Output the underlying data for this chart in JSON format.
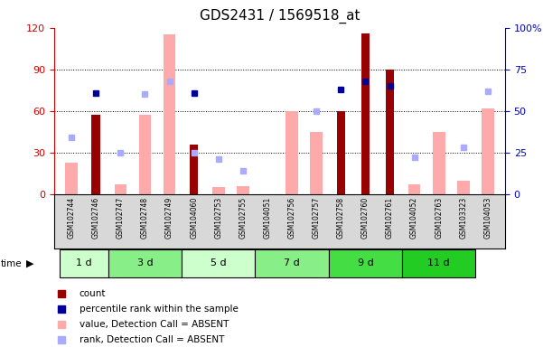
{
  "title": "GDS2431 / 1569518_at",
  "samples": [
    "GSM102744",
    "GSM102746",
    "GSM102747",
    "GSM102748",
    "GSM102749",
    "GSM104060",
    "GSM102753",
    "GSM102755",
    "GSM104051",
    "GSM102756",
    "GSM102757",
    "GSM102758",
    "GSM102760",
    "GSM102761",
    "GSM104052",
    "GSM102763",
    "GSM103323",
    "GSM104053"
  ],
  "time_groups": [
    {
      "label": "1 d",
      "start": 0,
      "end": 2,
      "color": "#ccffcc"
    },
    {
      "label": "3 d",
      "start": 2,
      "end": 5,
      "color": "#88ee88"
    },
    {
      "label": "5 d",
      "start": 5,
      "end": 8,
      "color": "#ccffcc"
    },
    {
      "label": "7 d",
      "start": 8,
      "end": 11,
      "color": "#88ee88"
    },
    {
      "label": "9 d",
      "start": 11,
      "end": 14,
      "color": "#44dd44"
    },
    {
      "label": "11 d",
      "start": 14,
      "end": 17,
      "color": "#22cc22"
    }
  ],
  "count": [
    0,
    57,
    0,
    0,
    0,
    36,
    0,
    0,
    0,
    0,
    0,
    60,
    116,
    90,
    0,
    0,
    0,
    0
  ],
  "percentile": [
    0,
    61,
    0,
    0,
    0,
    61,
    0,
    0,
    0,
    0,
    0,
    63,
    68,
    65,
    0,
    0,
    0,
    0
  ],
  "value_absent": [
    23,
    0,
    7,
    57,
    115,
    0,
    5,
    6,
    0,
    60,
    45,
    0,
    0,
    0,
    7,
    45,
    10,
    62
  ],
  "rank_absent": [
    34,
    0,
    25,
    60,
    68,
    25,
    21,
    14,
    0,
    0,
    50,
    0,
    0,
    0,
    22,
    0,
    28,
    62
  ],
  "ylim_left": [
    0,
    120
  ],
  "ylim_right": [
    0,
    100
  ],
  "left_ticks": [
    0,
    30,
    60,
    90,
    120
  ],
  "right_ticks": [
    0,
    25,
    50,
    75,
    100
  ],
  "right_ticklabels": [
    "0",
    "25",
    "50",
    "75",
    "100%"
  ],
  "bar_color_count": "#990000",
  "bar_color_absent_value": "#ffaaaa",
  "dot_color_percentile": "#000099",
  "dot_color_rank_absent": "#aaaaff",
  "left_tick_color": "#cc0000",
  "right_tick_color": "#0000cc",
  "legend_items": [
    {
      "color": "#990000",
      "label": "count"
    },
    {
      "color": "#000099",
      "label": "percentile rank within the sample"
    },
    {
      "color": "#ffaaaa",
      "label": "value, Detection Call = ABSENT"
    },
    {
      "color": "#aaaaff",
      "label": "rank, Detection Call = ABSENT"
    }
  ]
}
